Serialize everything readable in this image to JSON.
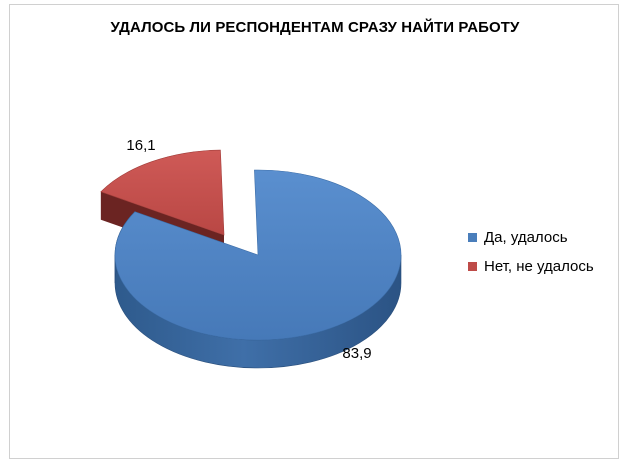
{
  "chart_data": {
    "type": "pie",
    "title": "УДАЛОСЬ ЛИ РЕСПОНДЕНТАМ СРАЗУ НАЙТИ РАБОТУ",
    "categories": [
      "Да, удалось",
      "Нет, не удалось"
    ],
    "values": [
      83.9,
      16.1
    ],
    "data_labels": [
      "83,9",
      "16,1"
    ],
    "colors": [
      "#4a7ebb",
      "#be4b48"
    ],
    "legend_position": "right"
  }
}
